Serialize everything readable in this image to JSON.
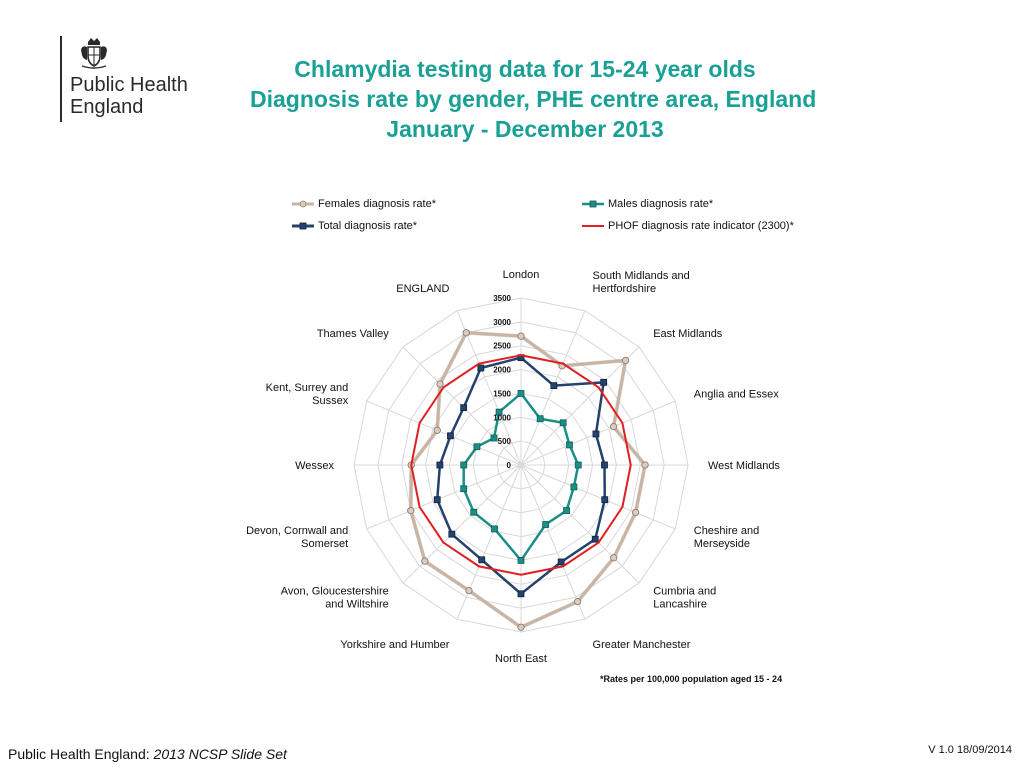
{
  "header": {
    "org_name_line1": "Public Health",
    "org_name_line2": "England",
    "title_lines": [
      "Chlamydia testing data for 15-24 year olds",
      "Diagnosis rate by gender, PHE centre area, England",
      "January - December 2013"
    ]
  },
  "footer": {
    "left_prefix": "Public Health England: ",
    "left_italic": "2013 NCSP Slide Set",
    "right": "V 1.0  18/09/2014"
  },
  "footnote": "*Rates per 100,000 population aged 15 - 24",
  "colors": {
    "title": "#1aa095",
    "females": "#c8b4a4",
    "males": "#1b8f86",
    "total": "#24426c",
    "phof": "#e02020",
    "grid": "#d8d8d8"
  },
  "chart_data": {
    "type": "radar",
    "categories": [
      "London",
      "South Midlands and Hertfordshire",
      "East Midlands",
      "Anglia and Essex",
      "West Midlands",
      "Cheshire and Merseyside",
      "Cumbria and Lancashire",
      "Greater Manchester",
      "North East",
      "Yorkshire and Humber",
      "Avon, Gloucestershire and Wiltshire",
      "Devon, Cornwall and Somerset",
      "Wessex",
      "Kent, Surrey and Sussex",
      "Thames Valley",
      "ENGLAND"
    ],
    "category_label_lines": [
      [
        "London"
      ],
      [
        "South Midlands and",
        "Hertfordshire"
      ],
      [
        "East Midlands"
      ],
      [
        "Anglia and Essex"
      ],
      [
        "West Midlands"
      ],
      [
        "Cheshire and",
        "Merseyside"
      ],
      [
        "Cumbria and",
        "Lancashire"
      ],
      [
        "Greater Manchester"
      ],
      [
        "North East"
      ],
      [
        "Yorkshire and Humber"
      ],
      [
        "Avon, Gloucestershire",
        "and Wiltshire"
      ],
      [
        "Devon, Cornwall and",
        "Somerset"
      ],
      [
        "Wessex"
      ],
      [
        "Kent, Surrey and",
        "Sussex"
      ],
      [
        "Thames Valley"
      ],
      [
        "ENGLAND"
      ]
    ],
    "rlim": [
      0,
      3500
    ],
    "ticks": [
      "0",
      "500",
      "1000",
      "1500",
      "2000",
      "2500",
      "3000",
      "3500"
    ],
    "tick_values": [
      0,
      500,
      1000,
      1500,
      2000,
      2500,
      3000,
      3500
    ],
    "grid": true,
    "legend_position": "top",
    "series": [
      {
        "name": "Females diagnosis rate*",
        "color_key": "females",
        "marker": "circle",
        "values": [
          2700,
          2250,
          3100,
          2100,
          2600,
          2600,
          2750,
          3100,
          3400,
          2850,
          2850,
          2500,
          2300,
          1900,
          2400,
          3000
        ]
      },
      {
        "name": "Males diagnosis rate*",
        "color_key": "males",
        "marker": "square",
        "values": [
          1500,
          1050,
          1250,
          1100,
          1200,
          1200,
          1350,
          1350,
          2000,
          1450,
          1400,
          1300,
          1200,
          1000,
          800,
          1200
        ]
      },
      {
        "name": "Total diagnosis rate*",
        "color_key": "total",
        "marker": "square",
        "values": [
          2250,
          1800,
          2450,
          1700,
          1750,
          1900,
          2200,
          2200,
          2700,
          2150,
          2050,
          1900,
          1700,
          1600,
          1700,
          2200
        ]
      },
      {
        "name": "PHOF diagnosis rate indicator (2300)*",
        "color_key": "phof",
        "marker": "none",
        "values": [
          2300,
          2300,
          2300,
          2300,
          2300,
          2300,
          2300,
          2300,
          2300,
          2300,
          2300,
          2300,
          2300,
          2300,
          2300,
          2300
        ]
      }
    ]
  }
}
